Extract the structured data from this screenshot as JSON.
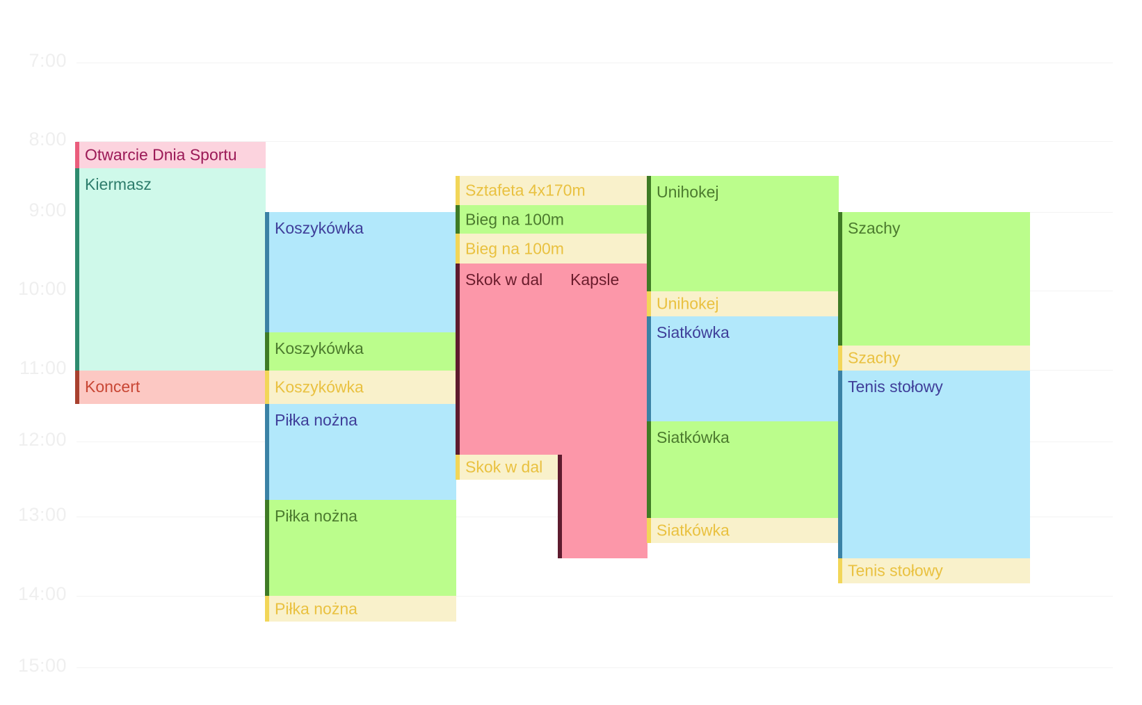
{
  "time_labels": [
    "7:00",
    "8:00",
    "9:00",
    "10:00",
    "11:00",
    "12:00",
    "13:00",
    "14:00",
    "15:00"
  ],
  "events": [
    {
      "id": "otwarcie",
      "label": "Otwarcie Dnia Sportu",
      "start": "8:00",
      "end": "8:20"
    },
    {
      "id": "kiermasz",
      "label": "Kiermasz",
      "start": "8:20",
      "end": "11:00"
    },
    {
      "id": "koncert",
      "label": "Koncert",
      "start": "11:00",
      "end": "11:25"
    },
    {
      "id": "koszykowka-1",
      "label": "Koszykówka",
      "start": "9:00",
      "end": "10:35"
    },
    {
      "id": "koszykowka-2",
      "label": "Koszykówka",
      "start": "10:35",
      "end": "11:00"
    },
    {
      "id": "koszykowka-3",
      "label": "Koszykówka",
      "start": "11:00",
      "end": "11:25"
    },
    {
      "id": "pilka-1",
      "label": "Piłka nożna",
      "start": "11:25",
      "end": "12:45"
    },
    {
      "id": "pilka-2",
      "label": "Piłka nożna",
      "start": "12:45",
      "end": "14:00"
    },
    {
      "id": "pilka-3",
      "label": "Piłka nożna",
      "start": "14:00",
      "end": "14:20"
    },
    {
      "id": "sztafeta",
      "label": "Sztafeta 4x170m",
      "start": "8:30",
      "end": "8:50"
    },
    {
      "id": "bieg-1",
      "label": "Bieg na 100m",
      "start": "8:50",
      "end": "9:15"
    },
    {
      "id": "bieg-2",
      "label": "Bieg na 100m",
      "start": "9:15",
      "end": "9:40"
    },
    {
      "id": "skok-kapsle",
      "label": "Skok w dal",
      "label2": "Kapsle",
      "start": "9:40",
      "end": "12:10"
    },
    {
      "id": "skok-2",
      "label": "Skok w dal",
      "start": "12:10",
      "end": "12:30"
    },
    {
      "id": "kapsle-cont",
      "start": "12:10",
      "end": "13:30"
    },
    {
      "id": "unihokej-1",
      "label": "Unihokej",
      "start": "8:30",
      "end": "10:00"
    },
    {
      "id": "unihokej-2",
      "label": "Unihokej",
      "start": "10:00",
      "end": "10:20"
    },
    {
      "id": "siatkowka-1",
      "label": "Siatkówka",
      "start": "10:20",
      "end": "11:40"
    },
    {
      "id": "siatkowka-2",
      "label": "Siatkówka",
      "start": "11:40",
      "end": "13:00"
    },
    {
      "id": "siatkowka-3",
      "label": "Siatkówka",
      "start": "13:00",
      "end": "13:20"
    },
    {
      "id": "szachy-1",
      "label": "Szachy",
      "start": "9:00",
      "end": "10:40"
    },
    {
      "id": "szachy-2",
      "label": "Szachy",
      "start": "10:40",
      "end": "11:00"
    },
    {
      "id": "tenis-1",
      "label": "Tenis stołowy",
      "start": "11:00",
      "end": "13:30"
    },
    {
      "id": "tenis-2",
      "label": "Tenis stołowy",
      "start": "13:30",
      "end": "13:50"
    }
  ],
  "colors": {
    "pink": "#fcd3de",
    "mint": "#cff9ea",
    "salmon": "#fcc8c3",
    "blue": "#b2e8fb",
    "green": "#bbfd8c",
    "yellow": "#f9f1cb",
    "red": "#fc97a9"
  }
}
